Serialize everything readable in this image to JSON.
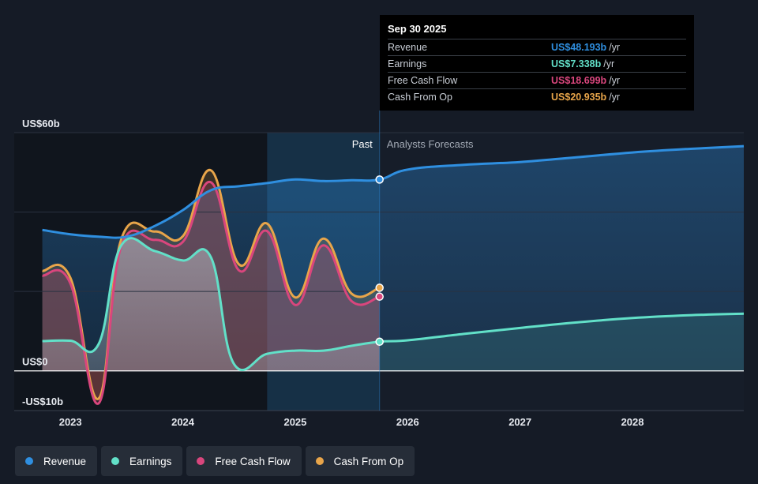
{
  "tooltip": {
    "date": "Sep 30 2025",
    "rows": [
      {
        "name": "Revenue",
        "value": "US$48.193b",
        "unit": "/yr",
        "color": "#2f8fe0"
      },
      {
        "name": "Earnings",
        "value": "US$7.338b",
        "unit": "/yr",
        "color": "#62e0c8"
      },
      {
        "name": "Free Cash Flow",
        "value": "US$18.699b",
        "unit": "/yr",
        "color": "#d9467d"
      },
      {
        "name": "Cash From Op",
        "value": "US$20.935b",
        "unit": "/yr",
        "color": "#e8a54a"
      }
    ]
  },
  "legend": [
    {
      "name": "Revenue",
      "color": "#2f8fe0"
    },
    {
      "name": "Earnings",
      "color": "#62e0c8"
    },
    {
      "name": "Free Cash Flow",
      "color": "#d9467d"
    },
    {
      "name": "Cash From Op",
      "color": "#e8a54a"
    }
  ],
  "chart_data": {
    "type": "line",
    "title": "",
    "xlabel": "",
    "ylabel": "",
    "ylim": [
      -10,
      60
    ],
    "y_tick_labels": [
      {
        "value": 60,
        "label": "US$60b"
      },
      {
        "value": 0,
        "label": "US$0"
      },
      {
        "value": -10,
        "label": "-US$10b"
      }
    ],
    "x_ticks": [
      2023,
      2024,
      2025,
      2026,
      2027,
      2028
    ],
    "xlim": [
      2022.5,
      2028.99
    ],
    "regions": {
      "past_label": "Past",
      "forecast_label": "Analysts Forecasts",
      "split_x": 2025.75,
      "highlight_start_x": 2024.75
    },
    "series": [
      {
        "name": "Revenue",
        "color": "#2f8fe0",
        "x": [
          2022.75,
          2023.0,
          2023.25,
          2023.5,
          2023.75,
          2024.0,
          2024.25,
          2024.5,
          2024.75,
          2025.0,
          2025.25,
          2025.5,
          2025.75,
          2026.0,
          2026.5,
          2027.0,
          2027.5,
          2028.0,
          2028.5,
          2028.99
        ],
        "y": [
          35.5,
          34.4,
          33.8,
          33.8,
          36.5,
          40.5,
          45.5,
          46.5,
          47.3,
          48.2,
          47.8,
          48.0,
          48.19,
          50.7,
          51.9,
          52.6,
          53.8,
          55.0,
          55.9,
          56.6
        ]
      },
      {
        "name": "Earnings",
        "color": "#62e0c8",
        "x": [
          2022.75,
          2023.0,
          2023.25,
          2023.45,
          2023.75,
          2024.0,
          2024.25,
          2024.45,
          2024.75,
          2025.0,
          2025.25,
          2025.5,
          2025.75,
          2026.0,
          2026.5,
          2027.0,
          2027.5,
          2028.0,
          2028.5,
          2028.99
        ],
        "y": [
          7.5,
          7.6,
          6.7,
          31.5,
          30.2,
          27.8,
          28.6,
          2.0,
          4.3,
          5.1,
          5.1,
          6.3,
          7.34,
          7.7,
          9.3,
          10.8,
          12.2,
          13.3,
          14.0,
          14.4
        ]
      },
      {
        "name": "Free Cash Flow",
        "color": "#d9467d",
        "x": [
          2022.75,
          2023.0,
          2023.25,
          2023.45,
          2023.75,
          2024.0,
          2024.25,
          2024.5,
          2024.75,
          2025.0,
          2025.25,
          2025.5,
          2025.75
        ],
        "y": [
          24.0,
          22.0,
          -8.2,
          31.2,
          33.0,
          32.5,
          47.5,
          25.3,
          35.2,
          16.6,
          31.6,
          17.6,
          18.7
        ]
      },
      {
        "name": "Cash From Op",
        "color": "#e8a54a",
        "x": [
          2022.75,
          2023.0,
          2023.25,
          2023.45,
          2023.75,
          2024.0,
          2024.25,
          2024.5,
          2024.75,
          2025.0,
          2025.25,
          2025.5,
          2025.75
        ],
        "y": [
          25.2,
          23.4,
          -7.0,
          33.0,
          35.1,
          33.9,
          50.5,
          26.8,
          37.1,
          18.5,
          33.3,
          19.5,
          20.94
        ]
      }
    ]
  }
}
